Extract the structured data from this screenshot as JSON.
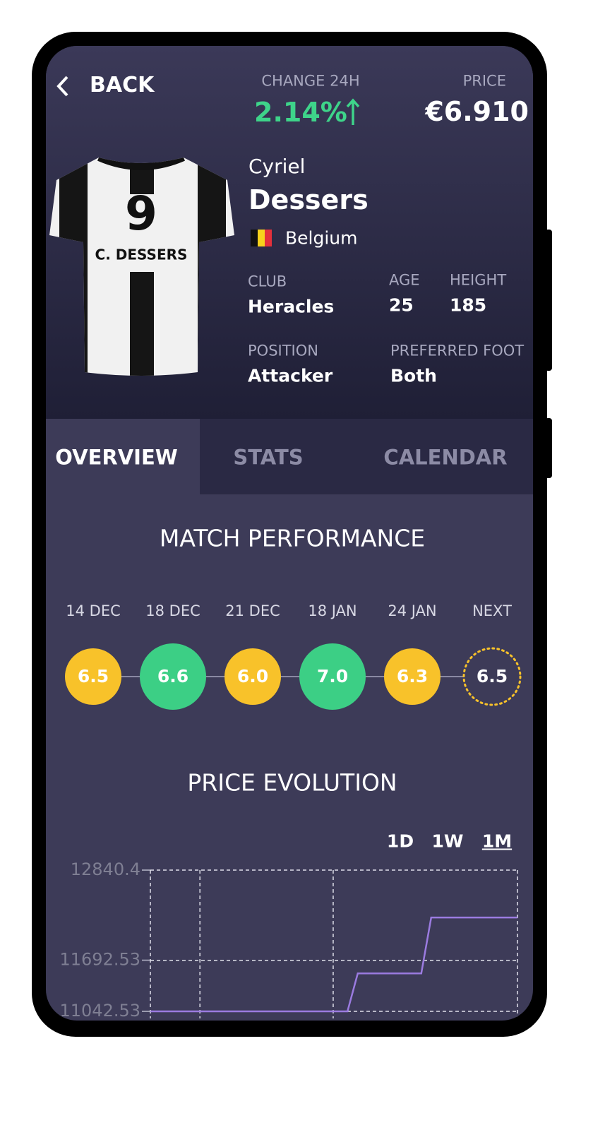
{
  "header": {
    "back": "BACK",
    "change_label": "CHANGE 24H",
    "change": "2.14%",
    "price_label": "PRICE",
    "price": "€6.910"
  },
  "player": {
    "jersey_number": "9",
    "jersey_name": "C. DESSERS",
    "first_name": "Cyriel",
    "last_name": "Dessers",
    "country": "Belgium",
    "club_label": "CLUB",
    "club": "Heracles",
    "age_label": "AGE",
    "age": "25",
    "height_label": "HEIGHT",
    "height": "185",
    "position_label": "POSITION",
    "position": "Attacker",
    "foot_label": "PREFERRED FOOT",
    "foot": "Both"
  },
  "tabs": {
    "items": [
      "OVERVIEW",
      "STATS",
      "CALENDAR"
    ],
    "active": 0
  },
  "match_performance": {
    "title": "MATCH PERFORMANCE",
    "matches": [
      {
        "date": "14 DEC",
        "rating": "6.5",
        "color": "#f8c22a"
      },
      {
        "date": "18 DEC",
        "rating": "6.6",
        "color": "#3ccf85"
      },
      {
        "date": "21 DEC",
        "rating": "6.0",
        "color": "#f8c22a"
      },
      {
        "date": "18 JAN",
        "rating": "7.0",
        "color": "#3ccf85"
      },
      {
        "date": "24 JAN",
        "rating": "6.3",
        "color": "#f8c22a"
      },
      {
        "date": "NEXT",
        "rating": "6.5",
        "color": "#f8c22a",
        "dotted": true
      }
    ]
  },
  "price_evolution": {
    "title": "PRICE EVOLUTION",
    "ranges": [
      "1D",
      "1W",
      "1M"
    ],
    "active_range": 2,
    "chart": {
      "type": "line",
      "color": "#9b7be0",
      "grid": true,
      "x": [
        0,
        53.7,
        56.5,
        73.8,
        76.5,
        100
      ],
      "values": [
        11042.53,
        11042.53,
        11526,
        11526,
        12237,
        12237
      ],
      "xlim": [
        0,
        100
      ],
      "xticks": [
        0,
        13.5,
        49.8,
        100
      ],
      "ylim": [
        11042.53,
        12840.4
      ],
      "yticks": [
        12840.4,
        11692.53,
        11042.53
      ]
    }
  }
}
